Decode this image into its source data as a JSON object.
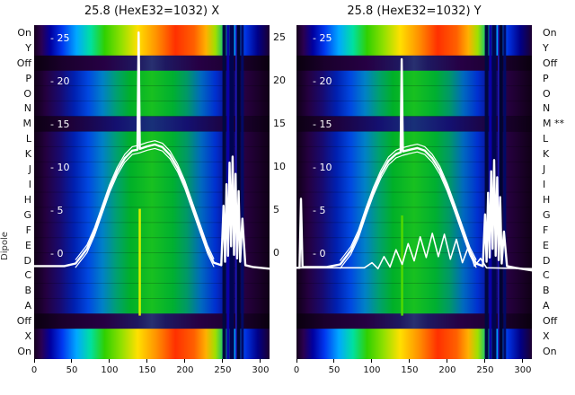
{
  "chart_data": {
    "type": "heatmap",
    "ylabel": "Dipole",
    "x_domain": [
      0,
      312
    ],
    "x_ticks": [
      0,
      50,
      100,
      150,
      200,
      250,
      300
    ],
    "y_ticks": [
      25,
      20,
      15,
      10,
      5,
      0
    ],
    "y_tick_labels": [
      "- 25",
      "- 20",
      "- 15",
      "- 10",
      "- 5",
      "- 0"
    ],
    "rows_left": [
      "On",
      "Y",
      "Off",
      "P",
      "O",
      "N",
      "M",
      "L",
      "K",
      "J",
      "I",
      "H",
      "G",
      "F",
      "E",
      "D",
      "C",
      "B",
      "A",
      "Off",
      "X",
      "On"
    ],
    "rows_right": [
      "On",
      "Y",
      "Off",
      "P",
      "O",
      "N",
      "M **",
      "L",
      "K",
      "J",
      "I",
      "H",
      "G",
      "F",
      "E",
      "D",
      "C",
      "B",
      "A",
      "Off",
      "X",
      "On"
    ],
    "row_kinds": [
      "bright",
      "bright",
      "off",
      "beam",
      "beam",
      "beam",
      "dark",
      "beam",
      "beam",
      "beam",
      "beam",
      "beam",
      "beam",
      "beam",
      "beam",
      "beam",
      "beam",
      "beam",
      "beam",
      "off",
      "bright",
      "bright"
    ],
    "colormaps": {
      "bright": [
        [
          0,
          "#15001c"
        ],
        [
          0.03,
          "#2a0050"
        ],
        [
          0.07,
          "#0000a0"
        ],
        [
          0.12,
          "#0038f0"
        ],
        [
          0.18,
          "#00a8ff"
        ],
        [
          0.24,
          "#00e0a0"
        ],
        [
          0.3,
          "#30d000"
        ],
        [
          0.37,
          "#90e000"
        ],
        [
          0.44,
          "#ffe000"
        ],
        [
          0.52,
          "#ff9000"
        ],
        [
          0.6,
          "#ff3000"
        ],
        [
          0.68,
          "#ff6000"
        ],
        [
          0.73,
          "#ffb000"
        ],
        [
          0.77,
          "#a0e000"
        ],
        [
          0.81,
          "#00c080"
        ],
        [
          0.85,
          "#00a0ff"
        ],
        [
          0.9,
          "#0030e0"
        ],
        [
          0.95,
          "#000088"
        ],
        [
          1,
          "#1c0030"
        ]
      ],
      "beam": [
        [
          0,
          "#100016"
        ],
        [
          0.05,
          "#240040"
        ],
        [
          0.11,
          "#180a70"
        ],
        [
          0.17,
          "#0020b0"
        ],
        [
          0.23,
          "#0048e0"
        ],
        [
          0.29,
          "#0080c8"
        ],
        [
          0.35,
          "#00a070"
        ],
        [
          0.41,
          "#00b028"
        ],
        [
          0.5,
          "#18c020"
        ],
        [
          0.59,
          "#00b030"
        ],
        [
          0.65,
          "#009868"
        ],
        [
          0.71,
          "#0068c0"
        ],
        [
          0.77,
          "#0030d0"
        ],
        [
          0.83,
          "#100a80"
        ],
        [
          0.9,
          "#26003f"
        ],
        [
          1,
          "#100016"
        ]
      ],
      "dark": [
        [
          0,
          "#0c0012"
        ],
        [
          0.15,
          "#1e0036"
        ],
        [
          0.35,
          "#141070"
        ],
        [
          0.5,
          "#183078"
        ],
        [
          0.65,
          "#141070"
        ],
        [
          0.85,
          "#1e0036"
        ],
        [
          1,
          "#0c0012"
        ]
      ],
      "off": [
        [
          0,
          "#0a000e"
        ],
        [
          0.12,
          "#1a002c"
        ],
        [
          0.3,
          "#260044"
        ],
        [
          0.44,
          "#1e1860"
        ],
        [
          0.5,
          "#283070"
        ],
        [
          0.56,
          "#1e1860"
        ],
        [
          0.7,
          "#260044"
        ],
        [
          0.88,
          "#1a002c"
        ],
        [
          1,
          "#0a000e"
        ]
      ]
    },
    "panels": [
      {
        "title": "25.8 (HexE32=1032) X",
        "stripes": [
          {
            "x": 140,
            "w": 2.5,
            "color": "#d8f000",
            "top": 0.55,
            "bottom": 0.87
          },
          {
            "x": 252,
            "w": 4,
            "color": "#000840"
          },
          {
            "x": 257,
            "w": 3,
            "color": "#0a00a8"
          },
          {
            "x": 262,
            "w": 5,
            "color": "#000550"
          },
          {
            "x": 268,
            "w": 2,
            "color": "#2018c0"
          },
          {
            "x": 271,
            "w": 4,
            "color": "#000430"
          },
          {
            "x": 276,
            "w": 3,
            "color": "#000a66"
          }
        ],
        "shapes": {
          "bell": [
            [
              55,
              -1.2
            ],
            [
              70,
              0.5
            ],
            [
              80,
              2.5
            ],
            [
              90,
              5
            ],
            [
              100,
              7.5
            ],
            [
              110,
              9.5
            ],
            [
              120,
              11
            ],
            [
              130,
              11.9
            ],
            [
              140,
              12.1
            ],
            [
              150,
              12.4
            ],
            [
              160,
              12.6
            ],
            [
              170,
              12.3
            ],
            [
              180,
              11.4
            ],
            [
              190,
              9.9
            ],
            [
              200,
              7.9
            ],
            [
              210,
              5.4
            ],
            [
              220,
              2.9
            ],
            [
              230,
              0.4
            ],
            [
              238,
              -1.1
            ]
          ]
        },
        "series": [
          {
            "name": "profile-main",
            "w": 2.4,
            "points": [
              [
                0,
                -1.5
              ],
              [
                40,
                -1.5
              ],
              [
                55,
                -1.2
              ],
              [
                70,
                0.5
              ],
              [
                80,
                2.5
              ],
              [
                90,
                5
              ],
              [
                100,
                7.5
              ],
              [
                110,
                9.5
              ],
              [
                120,
                11
              ],
              [
                130,
                11.9
              ],
              [
                137,
                12
              ],
              [
                138.5,
                25.6
              ],
              [
                140,
                12.1
              ],
              [
                150,
                12.4
              ],
              [
                160,
                12.6
              ],
              [
                170,
                12.3
              ],
              [
                180,
                11.4
              ],
              [
                190,
                9.9
              ],
              [
                200,
                7.9
              ],
              [
                210,
                5.4
              ],
              [
                220,
                2.9
              ],
              [
                230,
                0.4
              ],
              [
                238,
                -1.1
              ],
              [
                248,
                -1.4
              ],
              [
                251,
                5.5
              ],
              [
                253,
                -1
              ],
              [
                255,
                8
              ],
              [
                257,
                -0.3
              ],
              [
                259,
                10.5
              ],
              [
                261,
                0.8
              ],
              [
                263,
                11.2
              ],
              [
                265,
                -0.2
              ],
              [
                267,
                9.2
              ],
              [
                269,
                -0.6
              ],
              [
                271,
                7.2
              ],
              [
                273,
                -1
              ],
              [
                276,
                4
              ],
              [
                280,
                -1.4
              ],
              [
                290,
                -1.6
              ],
              [
                312,
                -1.8
              ]
            ]
          },
          {
            "name": "profile-upper",
            "w": 1.2,
            "ref": "bell",
            "dv": 0.45
          },
          {
            "name": "profile-lower",
            "w": 1.2,
            "ref": "bell",
            "dv": -0.45
          }
        ]
      },
      {
        "title": "25.8 (HexE32=1032) Y",
        "stripes": [
          {
            "x": 140,
            "w": 2.5,
            "color": "#50d800",
            "top": 0.57,
            "bottom": 0.87
          },
          {
            "x": 252,
            "w": 4,
            "color": "#000840"
          },
          {
            "x": 257,
            "w": 3,
            "color": "#0a00a8"
          },
          {
            "x": 262,
            "w": 5,
            "color": "#000550"
          },
          {
            "x": 268,
            "w": 2,
            "color": "#2018c0"
          },
          {
            "x": 271,
            "w": 4,
            "color": "#000430"
          },
          {
            "x": 276,
            "w": 3,
            "color": "#000a66"
          }
        ],
        "shapes": {
          "bell": [
            [
              58,
              -1.3
            ],
            [
              72,
              0.3
            ],
            [
              82,
              2.2
            ],
            [
              92,
              4.8
            ],
            [
              102,
              7.2
            ],
            [
              112,
              9.2
            ],
            [
              122,
              10.7
            ],
            [
              132,
              11.5
            ],
            [
              141,
              11.8
            ],
            [
              150,
              12
            ],
            [
              160,
              12.2
            ],
            [
              170,
              11.9
            ],
            [
              180,
              11
            ],
            [
              190,
              9.6
            ],
            [
              200,
              7.6
            ],
            [
              210,
              5.2
            ],
            [
              220,
              2.7
            ],
            [
              230,
              0.2
            ],
            [
              238,
              -1.2
            ]
          ]
        },
        "series": [
          {
            "name": "profile-main",
            "w": 2.4,
            "points": [
              [
                0,
                -1.7
              ],
              [
                4,
                -1.7
              ],
              [
                6,
                6.3
              ],
              [
                8,
                -1.6
              ],
              [
                40,
                -1.6
              ],
              [
                58,
                -1.3
              ],
              [
                72,
                0.3
              ],
              [
                82,
                2.2
              ],
              [
                92,
                4.8
              ],
              [
                102,
                7.2
              ],
              [
                112,
                9.2
              ],
              [
                122,
                10.7
              ],
              [
                132,
                11.5
              ],
              [
                138,
                11.7
              ],
              [
                139.5,
                22.5
              ],
              [
                141,
                11.8
              ],
              [
                150,
                12
              ],
              [
                160,
                12.2
              ],
              [
                170,
                11.9
              ],
              [
                180,
                11
              ],
              [
                190,
                9.6
              ],
              [
                200,
                7.6
              ],
              [
                210,
                5.2
              ],
              [
                220,
                2.7
              ],
              [
                230,
                0.2
              ],
              [
                238,
                -1.2
              ],
              [
                247,
                -1.5
              ],
              [
                250,
                4.5
              ],
              [
                252,
                -1
              ],
              [
                254,
                7
              ],
              [
                256,
                -0.5
              ],
              [
                258,
                9.5
              ],
              [
                260,
                0.5
              ],
              [
                262,
                10.8
              ],
              [
                264,
                -0.3
              ],
              [
                266,
                8.8
              ],
              [
                268,
                -0.8
              ],
              [
                270,
                6.5
              ],
              [
                272,
                -1.2
              ],
              [
                275,
                2.5
              ],
              [
                279,
                -1.5
              ],
              [
                290,
                -1.7
              ],
              [
                312,
                -2
              ]
            ]
          },
          {
            "name": "profile-upper",
            "w": 1.2,
            "ref": "bell",
            "dv": 0.45
          },
          {
            "name": "profile-lower",
            "w": 1.2,
            "ref": "bell",
            "dv": -0.45
          },
          {
            "name": "ripple",
            "w": 1.6,
            "points": [
              [
                0,
                -1.7
              ],
              [
                90,
                -1.7
              ],
              [
                100,
                -1.1
              ],
              [
                108,
                -1.8
              ],
              [
                116,
                -0.4
              ],
              [
                124,
                -1.6
              ],
              [
                132,
                0.4
              ],
              [
                140,
                -1.3
              ],
              [
                148,
                1.1
              ],
              [
                156,
                -0.9
              ],
              [
                164,
                1.9
              ],
              [
                172,
                -0.5
              ],
              [
                180,
                2.3
              ],
              [
                188,
                -0.4
              ],
              [
                196,
                2.2
              ],
              [
                204,
                -0.7
              ],
              [
                212,
                1.6
              ],
              [
                220,
                -1.1
              ],
              [
                228,
                0.8
              ],
              [
                236,
                -1.5
              ],
              [
                244,
                -0.6
              ],
              [
                252,
                -1.7
              ],
              [
                312,
                -1.8
              ]
            ]
          }
        ]
      }
    ]
  }
}
